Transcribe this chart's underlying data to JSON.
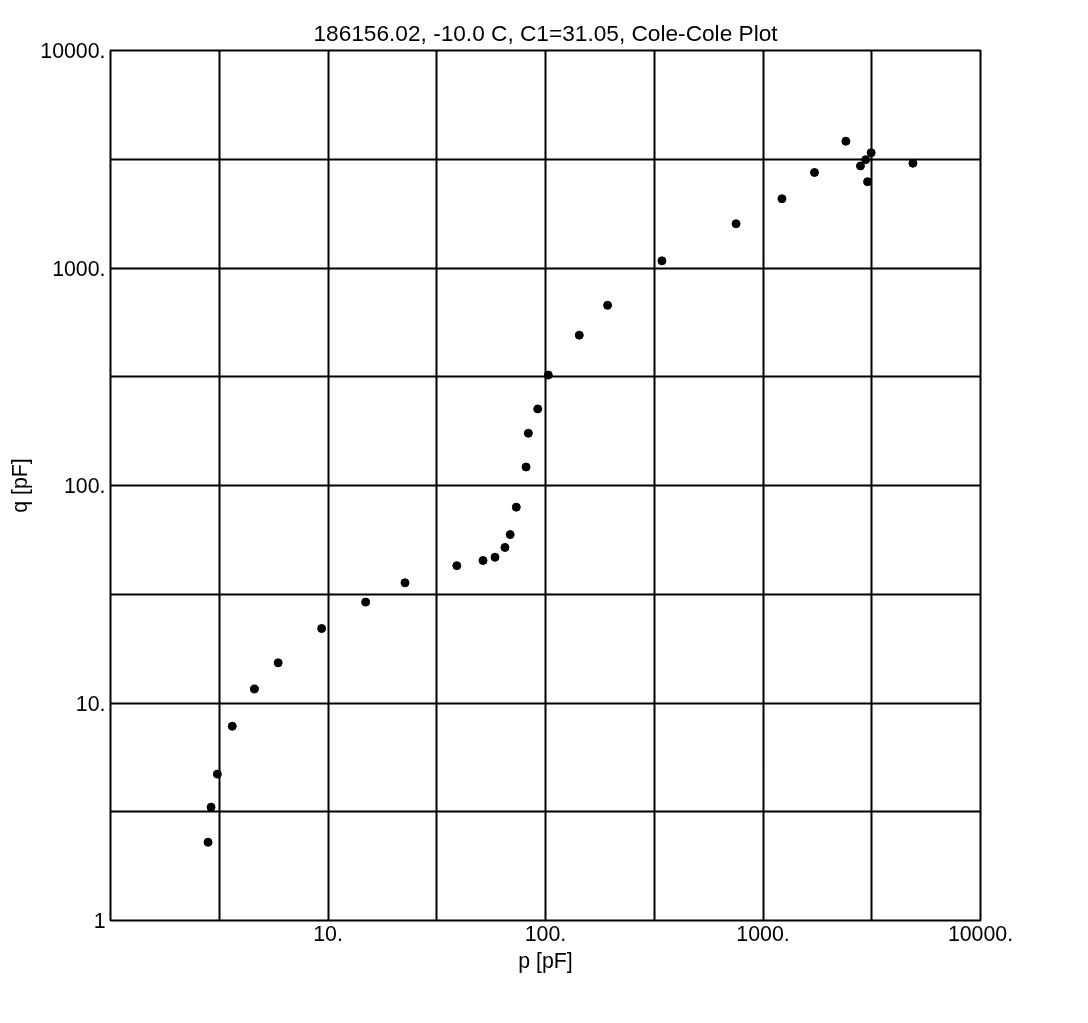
{
  "chart_data": {
    "type": "scatter",
    "title": "186156.02, -10.0 C, C1=31.05, Cole-Cole Plot",
    "xlabel": "p [pF]",
    "ylabel": "q [pF]",
    "log": "xy",
    "grid": true,
    "marker": "circle",
    "xlim": [
      1,
      10000
    ],
    "ylim": [
      1,
      10000
    ],
    "xticks": [
      {
        "value": 3.162,
        "label": null
      },
      {
        "value": 10,
        "label": "10."
      },
      {
        "value": 31.62,
        "label": null
      },
      {
        "value": 100,
        "label": "100."
      },
      {
        "value": 316.2,
        "label": null
      },
      {
        "value": 1000,
        "label": "1000."
      },
      {
        "value": 3162,
        "label": null
      },
      {
        "value": 10000,
        "label": "10000."
      }
    ],
    "yticks": [
      1,
      {
        "value": 3.162,
        "label": null
      },
      {
        "value": 10,
        "label": "10."
      },
      {
        "value": 31.62,
        "label": null
      },
      {
        "value": 100,
        "label": "100."
      },
      {
        "value": 316.2,
        "label": null
      },
      {
        "value": 1000,
        "label": "1000."
      },
      {
        "value": 3162,
        "label": null
      },
      {
        "value": 10000,
        "label": "10000."
      }
    ],
    "series": [
      {
        "color": "#000000",
        "x": [
          2.81,
          2.9,
          3.1,
          3.63,
          4.59,
          5.9,
          9.35,
          14.9,
          22.6,
          39.1,
          51.6,
          58.6,
          65.1,
          68.8,
          73.4,
          81.4,
          83.4,
          92.1,
          103,
          143,
          193,
          343,
          752,
          1222,
          1725,
          2404,
          2806,
          2965,
          3025,
          3142,
          4890
        ],
        "values": [
          2.29,
          3.32,
          4.71,
          7.82,
          11.6,
          15.3,
          22.0,
          29.1,
          35.7,
          42.8,
          45.2,
          46.8,
          51.9,
          59.5,
          79.5,
          121.6,
          173.9,
          225,
          322,
          491,
          674,
          1079,
          1597,
          2081,
          2749,
          3828,
          2946,
          3148,
          2494,
          3388,
          3032
        ]
      }
    ]
  }
}
